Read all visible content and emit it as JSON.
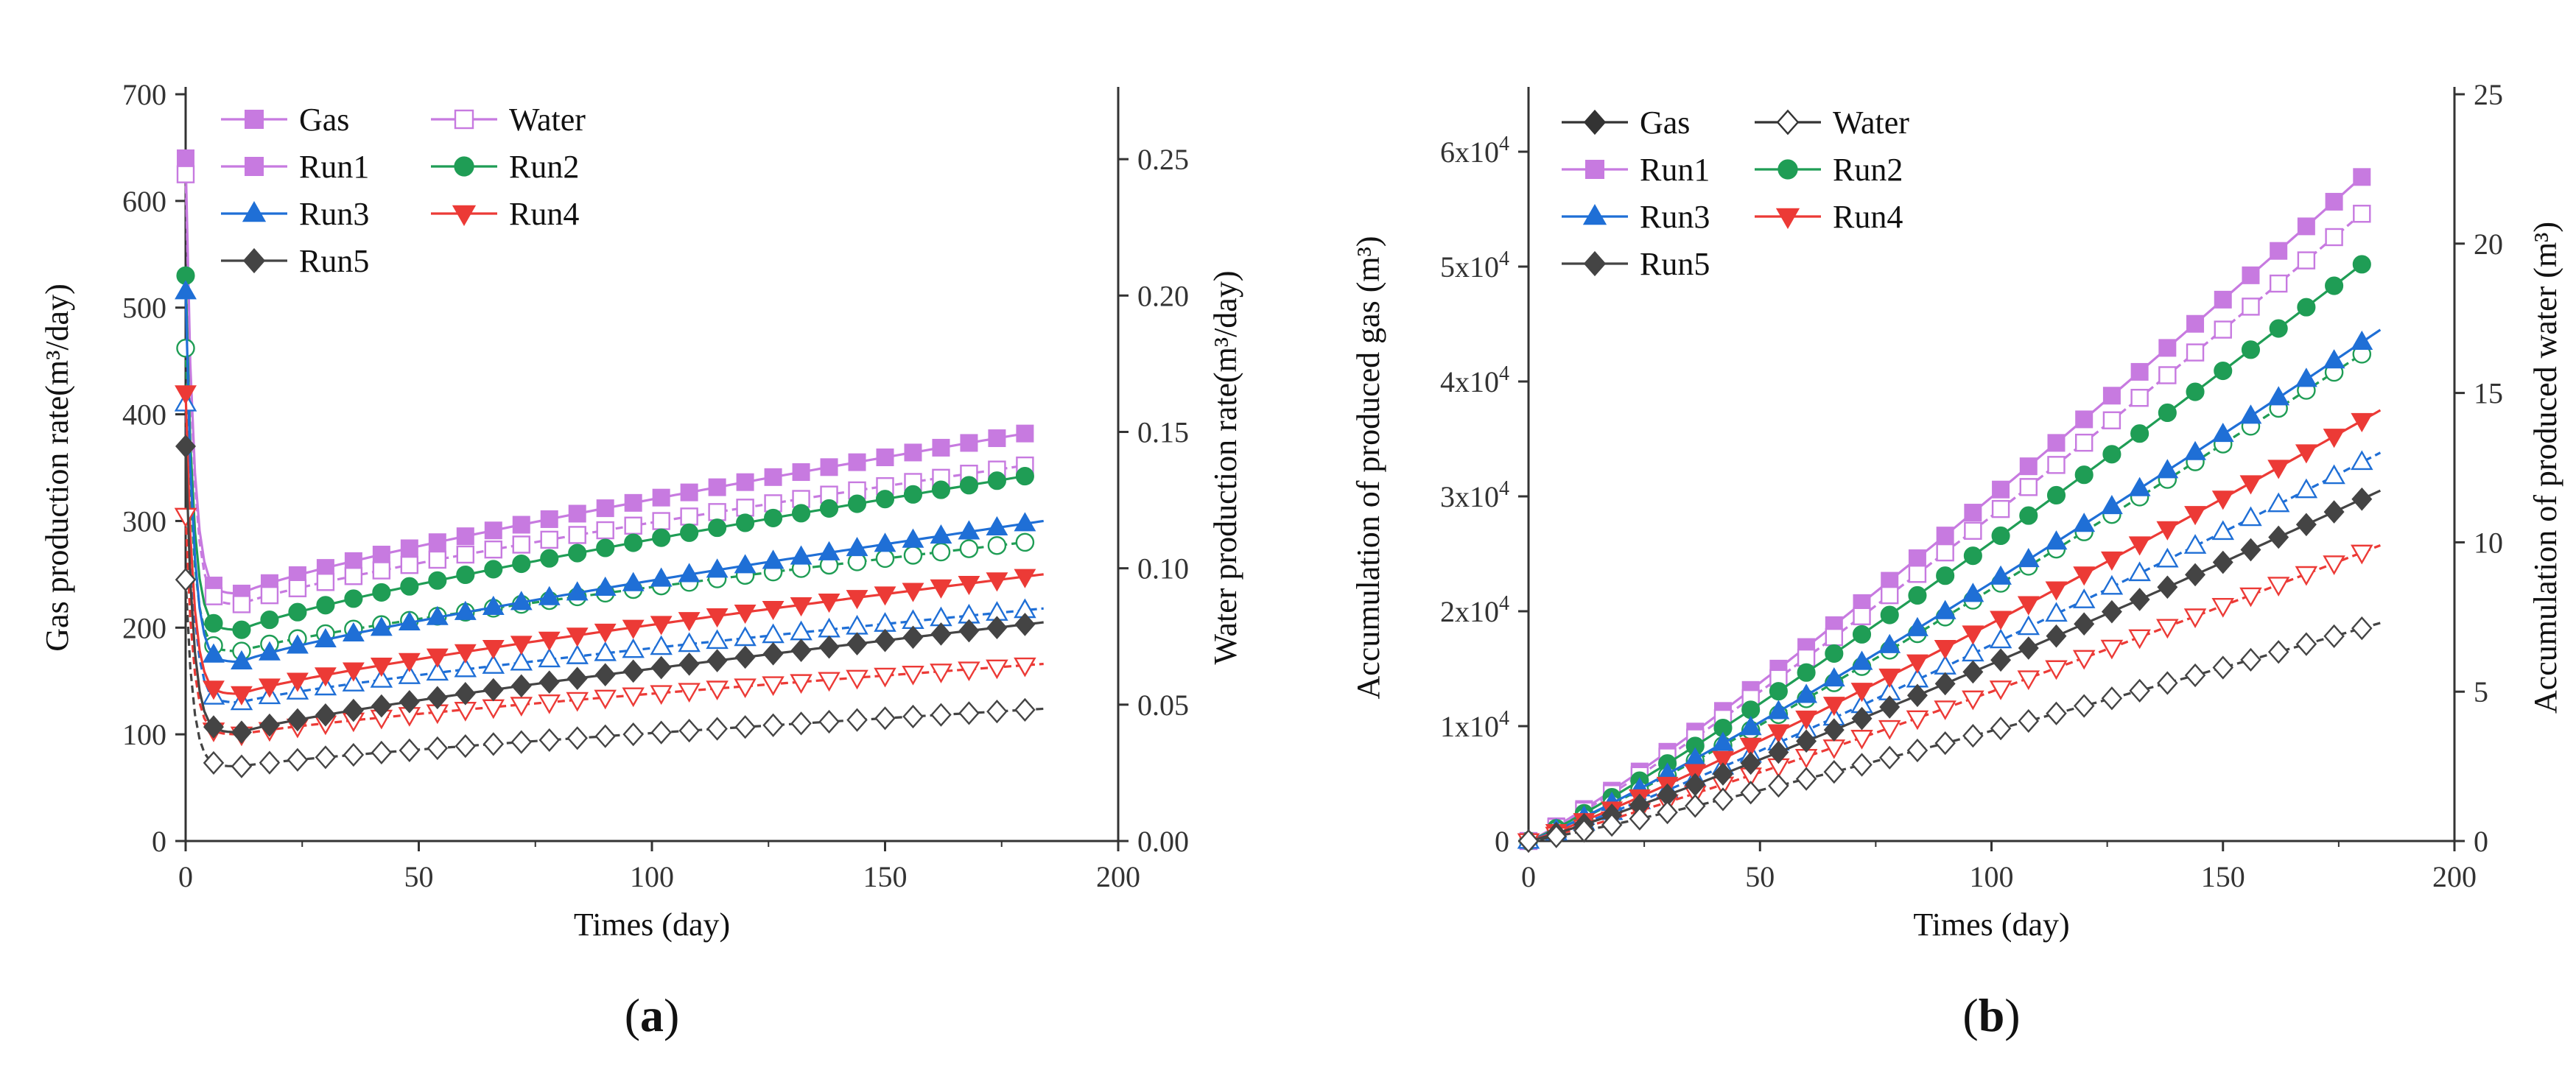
{
  "colors": {
    "run1": "#c77ae0",
    "run2": "#1f9d55",
    "run3": "#1f6fd6",
    "run4": "#ec3a36",
    "run5": "#444444",
    "legend_dark": "#333333",
    "axis": "#333333"
  },
  "chart_data": [
    {
      "panel": "a",
      "type": "line",
      "panel_label_prefix": "(",
      "panel_label_letter": "a",
      "panel_label_suffix": ")",
      "xlabel": "Times (day)",
      "ylabel": "Gas production rate(m³/day)",
      "y2label": "Water production rate(m³/day)",
      "xlim": [
        0,
        200
      ],
      "ylim": [
        0,
        700
      ],
      "y2lim": [
        0,
        0.2738
      ],
      "xticks": [
        "0",
        "50",
        "100",
        "150",
        "200"
      ],
      "yticks": [
        "0",
        "100",
        "200",
        "300",
        "400",
        "500",
        "600",
        "700"
      ],
      "y2ticks": [
        "0.00",
        "0.05",
        "0.10",
        "0.15",
        "0.20",
        "0.25"
      ],
      "legend": [
        {
          "label": "Gas",
          "marker": "square",
          "filled": true,
          "color_key": "run1"
        },
        {
          "label": "Water",
          "marker": "square",
          "filled": false,
          "color_key": "run1"
        },
        {
          "label": "Run1",
          "marker": "square",
          "filled": true,
          "color_key": "run1"
        },
        {
          "label": "Run2",
          "marker": "circle",
          "filled": true,
          "color_key": "run2"
        },
        {
          "label": "Run3",
          "marker": "triangle-up",
          "filled": true,
          "color_key": "run3"
        },
        {
          "label": "Run4",
          "marker": "triangle-down",
          "filled": true,
          "color_key": "run4"
        },
        {
          "label": "Run5",
          "marker": "diamond",
          "filled": true,
          "color_key": "run5"
        }
      ],
      "model": "rate",
      "series": [
        {
          "name": "Run1 gas",
          "color_key": "run1",
          "marker": "square",
          "filled": true,
          "axis": "y",
          "x_end": 180,
          "start": 640,
          "min_value": 232,
          "end": 382
        },
        {
          "name": "Run1 water",
          "color_key": "run1",
          "marker": "square",
          "filled": false,
          "axis": "y",
          "x_end": 180,
          "start": 625,
          "min_value": 222,
          "end": 352
        },
        {
          "name": "Run2 gas",
          "color_key": "run2",
          "marker": "circle",
          "filled": true,
          "axis": "y",
          "x_end": 180,
          "start": 530,
          "min_value": 198,
          "end": 342
        },
        {
          "name": "Run2 water",
          "color_key": "run2",
          "marker": "circle",
          "filled": false,
          "axis": "y",
          "x_end": 180,
          "start": 462,
          "min_value": 178,
          "end": 280
        },
        {
          "name": "Run3 gas",
          "color_key": "run3",
          "marker": "triangle-up",
          "filled": true,
          "axis": "y",
          "x_end": 184,
          "start": 515,
          "min_value": 168,
          "end": 300
        },
        {
          "name": "Run3 water",
          "color_key": "run3",
          "marker": "triangle-up",
          "filled": false,
          "axis": "y",
          "x_end": 184,
          "start": 410,
          "min_value": 130,
          "end": 218
        },
        {
          "name": "Run4 gas",
          "color_key": "run4",
          "marker": "triangle-down",
          "filled": true,
          "axis": "y",
          "x_end": 184,
          "start": 420,
          "min_value": 138,
          "end": 250
        },
        {
          "name": "Run4 water",
          "color_key": "run4",
          "marker": "triangle-down",
          "filled": false,
          "axis": "y",
          "x_end": 184,
          "start": 305,
          "min_value": 100,
          "end": 166
        },
        {
          "name": "Run5 gas",
          "color_key": "run5",
          "marker": "diamond",
          "filled": true,
          "axis": "y",
          "x_end": 184,
          "start": 370,
          "min_value": 102,
          "end": 205
        },
        {
          "name": "Run5 water",
          "color_key": "run5",
          "marker": "diamond",
          "filled": false,
          "axis": "y",
          "x_end": 184,
          "start": 245,
          "min_value": 70,
          "end": 124
        }
      ]
    },
    {
      "panel": "b",
      "type": "line",
      "panel_label_prefix": "(",
      "panel_label_letter": "b",
      "panel_label_suffix": ")",
      "xlabel": "Times (day)",
      "ylabel": "Accumulation of produced gas (m³)",
      "y2label": "Accumulation of produced water (m³)",
      "xlim": [
        0,
        200
      ],
      "ylim": [
        0,
        65000
      ],
      "y2lim": [
        0,
        25
      ],
      "xticks": [
        "0",
        "50",
        "100",
        "150",
        "200"
      ],
      "yticks_base": [
        "0",
        "1x10",
        "2x10",
        "3x10",
        "4x10",
        "5x10",
        "6x10"
      ],
      "ytick_exponent": "4",
      "y2ticks": [
        "0",
        "5",
        "10",
        "15",
        "20",
        "25"
      ],
      "legend": [
        {
          "label": "Gas",
          "marker": "diamond",
          "filled": true,
          "color_key": "legend_dark"
        },
        {
          "label": "Water",
          "marker": "diamond",
          "filled": false,
          "color_key": "legend_dark"
        },
        {
          "label": "Run1",
          "marker": "square",
          "filled": true,
          "color_key": "run1"
        },
        {
          "label": "Run2",
          "marker": "circle",
          "filled": true,
          "color_key": "run2"
        },
        {
          "label": "Run3",
          "marker": "triangle-up",
          "filled": true,
          "color_key": "run3"
        },
        {
          "label": "Run4",
          "marker": "triangle-down",
          "filled": true,
          "color_key": "run4"
        },
        {
          "label": "Run5",
          "marker": "diamond",
          "filled": true,
          "color_key": "run5"
        }
      ],
      "model": "cumulative",
      "series": [
        {
          "name": "Run1 gas",
          "color_key": "run1",
          "marker": "square",
          "filled": true,
          "axis": "y",
          "x_end": 180,
          "end": 57800
        },
        {
          "name": "Run1 water",
          "color_key": "run1",
          "marker": "square",
          "filled": false,
          "axis": "y2",
          "x_end": 180,
          "end": 21.0
        },
        {
          "name": "Run2 gas",
          "color_key": "run2",
          "marker": "circle",
          "filled": true,
          "axis": "y",
          "x_end": 180,
          "end": 50200
        },
        {
          "name": "Run2 water",
          "color_key": "run2",
          "marker": "circle",
          "filled": false,
          "axis": "y2",
          "x_end": 180,
          "end": 16.3
        },
        {
          "name": "Run3 gas",
          "color_key": "run3",
          "marker": "triangle-up",
          "filled": true,
          "axis": "y",
          "x_end": 184,
          "end": 44500
        },
        {
          "name": "Run3 water",
          "color_key": "run3",
          "marker": "triangle-up",
          "filled": false,
          "axis": "y2",
          "x_end": 184,
          "end": 13.0
        },
        {
          "name": "Run4 gas",
          "color_key": "run4",
          "marker": "triangle-down",
          "filled": true,
          "axis": "y",
          "x_end": 184,
          "end": 37500
        },
        {
          "name": "Run4 water",
          "color_key": "run4",
          "marker": "triangle-down",
          "filled": false,
          "axis": "y2",
          "x_end": 184,
          "end": 9.9
        },
        {
          "name": "Run5 gas",
          "color_key": "run5",
          "marker": "diamond",
          "filled": true,
          "axis": "y",
          "x_end": 184,
          "end": 30500
        },
        {
          "name": "Run5 water",
          "color_key": "run5",
          "marker": "diamond",
          "filled": false,
          "axis": "y2",
          "x_end": 184,
          "end": 7.3
        }
      ]
    }
  ]
}
